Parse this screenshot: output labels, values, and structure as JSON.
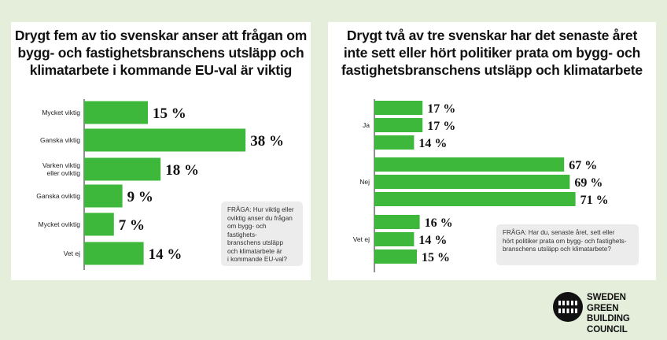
{
  "left_panel": {
    "title": "Drygt fem av tio svenskar anser att frågan om\nbygg- och fastighetsbranschens utsläpp och\nklimatarbete i kommande EU-val är viktig",
    "question": "FRÅGA: Hur viktig eller\noviktig anser du frågan\nom bygg- och fastighets-\nbranschens utsläpp\noch klimatarbete är\ni kommande EU-val?"
  },
  "right_panel": {
    "title": "Drygt två av tre svenskar har det senaste året\ninte sett eller hört politiker prata om bygg- och\nfastighetsbranschens utsläpp och klimatarbete",
    "question": "FRÅGA: Har du, senaste året, sett eller\nhört politiker prata om bygg- och fastighets-\nbranschens utsläpp och klimatarbete?"
  },
  "logo": {
    "text": "SWEDEN\nGREEN BUILDING\nCOUNCIL"
  },
  "colors": {
    "bar": "#3db83a",
    "background": "#e4eedb",
    "panel": "#ffffff"
  },
  "chart_data": [
    {
      "type": "bar",
      "orientation": "horizontal",
      "categories": [
        "Mycket viktig",
        "Ganska viktig",
        "Varken viktig\neller oviktig",
        "Ganska oviktig",
        "Mycket oviktig",
        "Vet ej"
      ],
      "values": [
        15,
        38,
        18,
        9,
        7,
        14
      ],
      "value_labels": [
        "15 %",
        "38 %",
        "18 %",
        "9 %",
        "7 %",
        "14 %"
      ],
      "unit": "%",
      "xlim": [
        0,
        100
      ]
    },
    {
      "type": "bar",
      "orientation": "horizontal",
      "categories": [
        "Ja",
        "Nej",
        "Vet ej"
      ],
      "series": [
        {
          "values": [
            17,
            67,
            16
          ],
          "value_labels": [
            "17 %",
            "67 %",
            "16 %"
          ]
        },
        {
          "values": [
            17,
            69,
            14
          ],
          "value_labels": [
            "17 %",
            "69 %",
            "14 %"
          ]
        },
        {
          "values": [
            14,
            71,
            15
          ],
          "value_labels": [
            "14 %",
            "71 %",
            "15 %"
          ]
        }
      ],
      "unit": "%",
      "xlim": [
        0,
        100
      ]
    }
  ]
}
